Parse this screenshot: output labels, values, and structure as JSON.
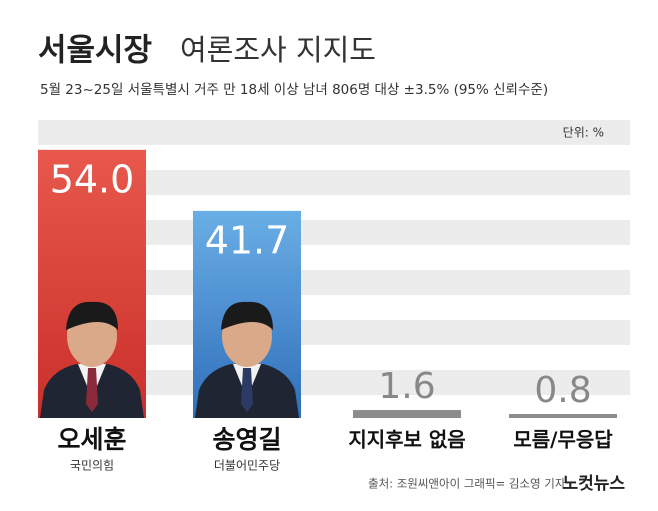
{
  "chart_data": {
    "type": "bar",
    "title": [
      "서울시장",
      "여론조사 지지도"
    ],
    "subtitle": "5월 23~25일 서울특별시 거주 만 18세 이상 남녀 806명 대상 ±3.5% (95% 신뢰수준)",
    "unit": "단위: %",
    "categories": [
      "오세훈",
      "송영길",
      "지지후보 없음",
      "모름/무응답"
    ],
    "subcategories": [
      "국민의힘",
      "더불어민주당",
      null,
      null
    ],
    "values": [
      54.0,
      41.7,
      1.6,
      0.8
    ],
    "value_labels": [
      "54.0",
      "41.7",
      "1.6",
      "0.8"
    ],
    "colors": [
      "#d93b31",
      "#3f82cc",
      "#8c8c8c",
      "#8c8c8c"
    ],
    "ylim": [
      0,
      60
    ],
    "source": "출처: 조원씨앤아이  그래픽= 김소영 기자",
    "logo": "노컷뉴스"
  }
}
